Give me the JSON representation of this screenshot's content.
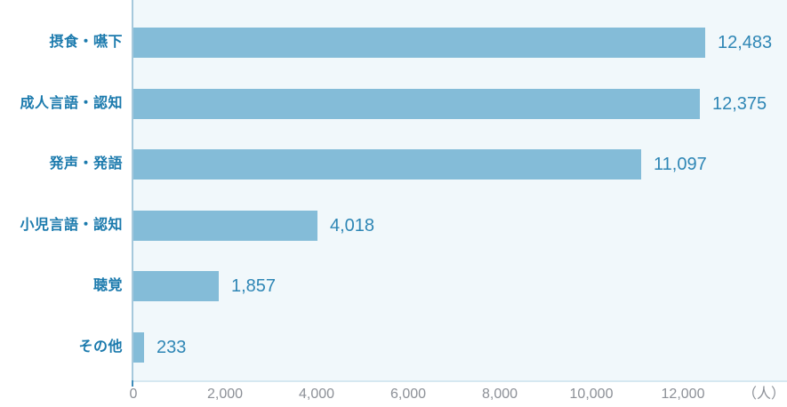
{
  "chart_data": {
    "type": "bar",
    "orientation": "horizontal",
    "title": "",
    "xlabel": "",
    "ylabel": "",
    "categories": [
      "摂食・嚥下",
      "成人言語・認知",
      "発声・発語",
      "小児言語・認知",
      "聴覚",
      "その他"
    ],
    "values": [
      12483,
      12375,
      11097,
      4018,
      1857,
      233
    ],
    "value_labels": [
      "12,483",
      "12,375",
      "11,097",
      "4,018",
      "1,857",
      "233"
    ],
    "x_ticks": [
      0,
      2000,
      4000,
      6000,
      8000,
      10000,
      12000
    ],
    "x_tick_labels": [
      "0",
      "2,000",
      "4,000",
      "6,000",
      "8,000",
      "10,000",
      "12,000"
    ],
    "unit_label": "（人）",
    "xlim": [
      0,
      14250
    ],
    "grid": "off",
    "legend": "none",
    "colors": {
      "bar": "#84BCD8",
      "plot_background": "#F1F8FB",
      "category_label": "#1B7AAD",
      "value_label": "#2E86B5",
      "tick_label": "#8C9097",
      "axis_line": "#A6C9DC"
    }
  }
}
